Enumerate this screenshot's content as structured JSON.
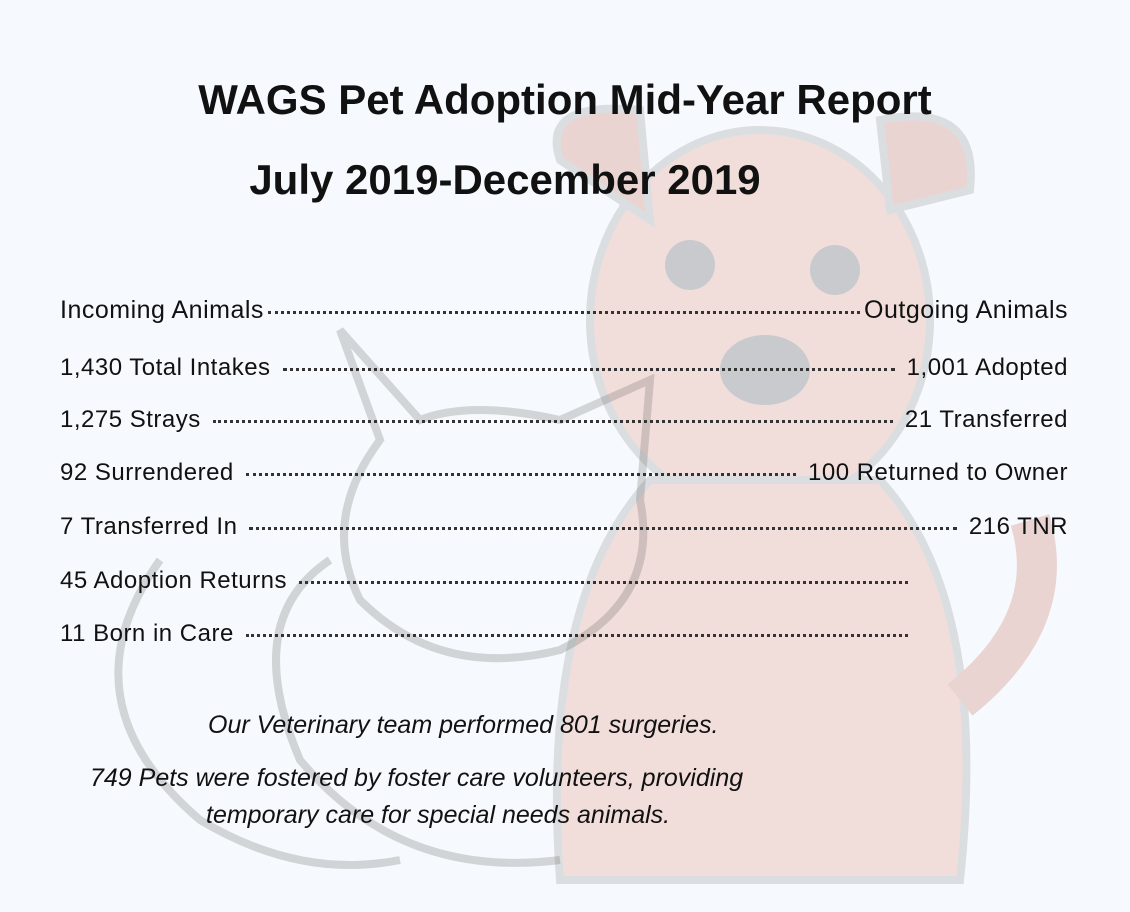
{
  "header": {
    "title": "WAGS Pet Adoption Mid-Year Report",
    "subtitle": "July 2019-December 2019"
  },
  "columns": {
    "left": "Incoming Animals",
    "right": "Outgoing Animals"
  },
  "rows": [
    {
      "left": "1,430 Total Intakes",
      "right": "1,001 Adopted"
    },
    {
      "left": "1,275 Strays",
      "right": "21 Transferred"
    },
    {
      "left": "92 Surrendered",
      "right": "100 Returned to Owner"
    },
    {
      "left": "7 Transferred In",
      "right": "216 TNR"
    },
    {
      "left": "45 Adoption Returns"
    },
    {
      "left": "11  Born in Care"
    }
  ],
  "footer": {
    "line1": "Our Veterinary team  performed  801 surgeries.",
    "line2": "749 Pets were  fostered  by foster care volunteers, providing",
    "line3": "temporary care for special needs animals."
  }
}
